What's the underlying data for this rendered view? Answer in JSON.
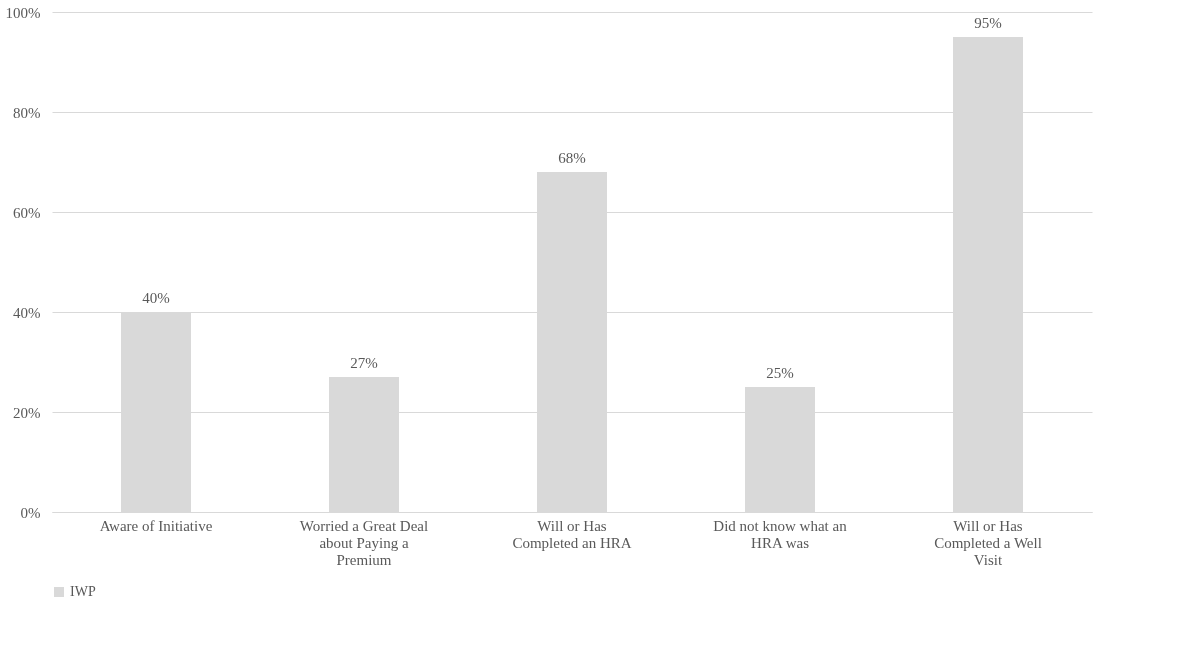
{
  "chart_data": {
    "type": "bar",
    "categories": [
      "Aware of Initiative",
      "Worried a Great Deal about Paying a Premium",
      "Will or Has Completed an HRA",
      "Did not know what an HRA was",
      "Will or Has Completed a Well Visit"
    ],
    "series": [
      {
        "name": "IWP",
        "color": "#d9d9d9",
        "values": [
          40,
          27,
          68,
          25,
          95
        ]
      }
    ],
    "ylim": [
      0,
      100
    ],
    "yticks": [
      {
        "value": 0,
        "label": "0%"
      },
      {
        "value": 20,
        "label": "20%"
      },
      {
        "value": 40,
        "label": "40%"
      },
      {
        "value": 60,
        "label": "60%"
      },
      {
        "value": 80,
        "label": "80%"
      },
      {
        "value": 100,
        "label": "100%"
      }
    ],
    "value_labels": [
      "40%",
      "27%",
      "68%",
      "25%",
      "95%"
    ],
    "grid": "y",
    "legend": "bottom"
  }
}
